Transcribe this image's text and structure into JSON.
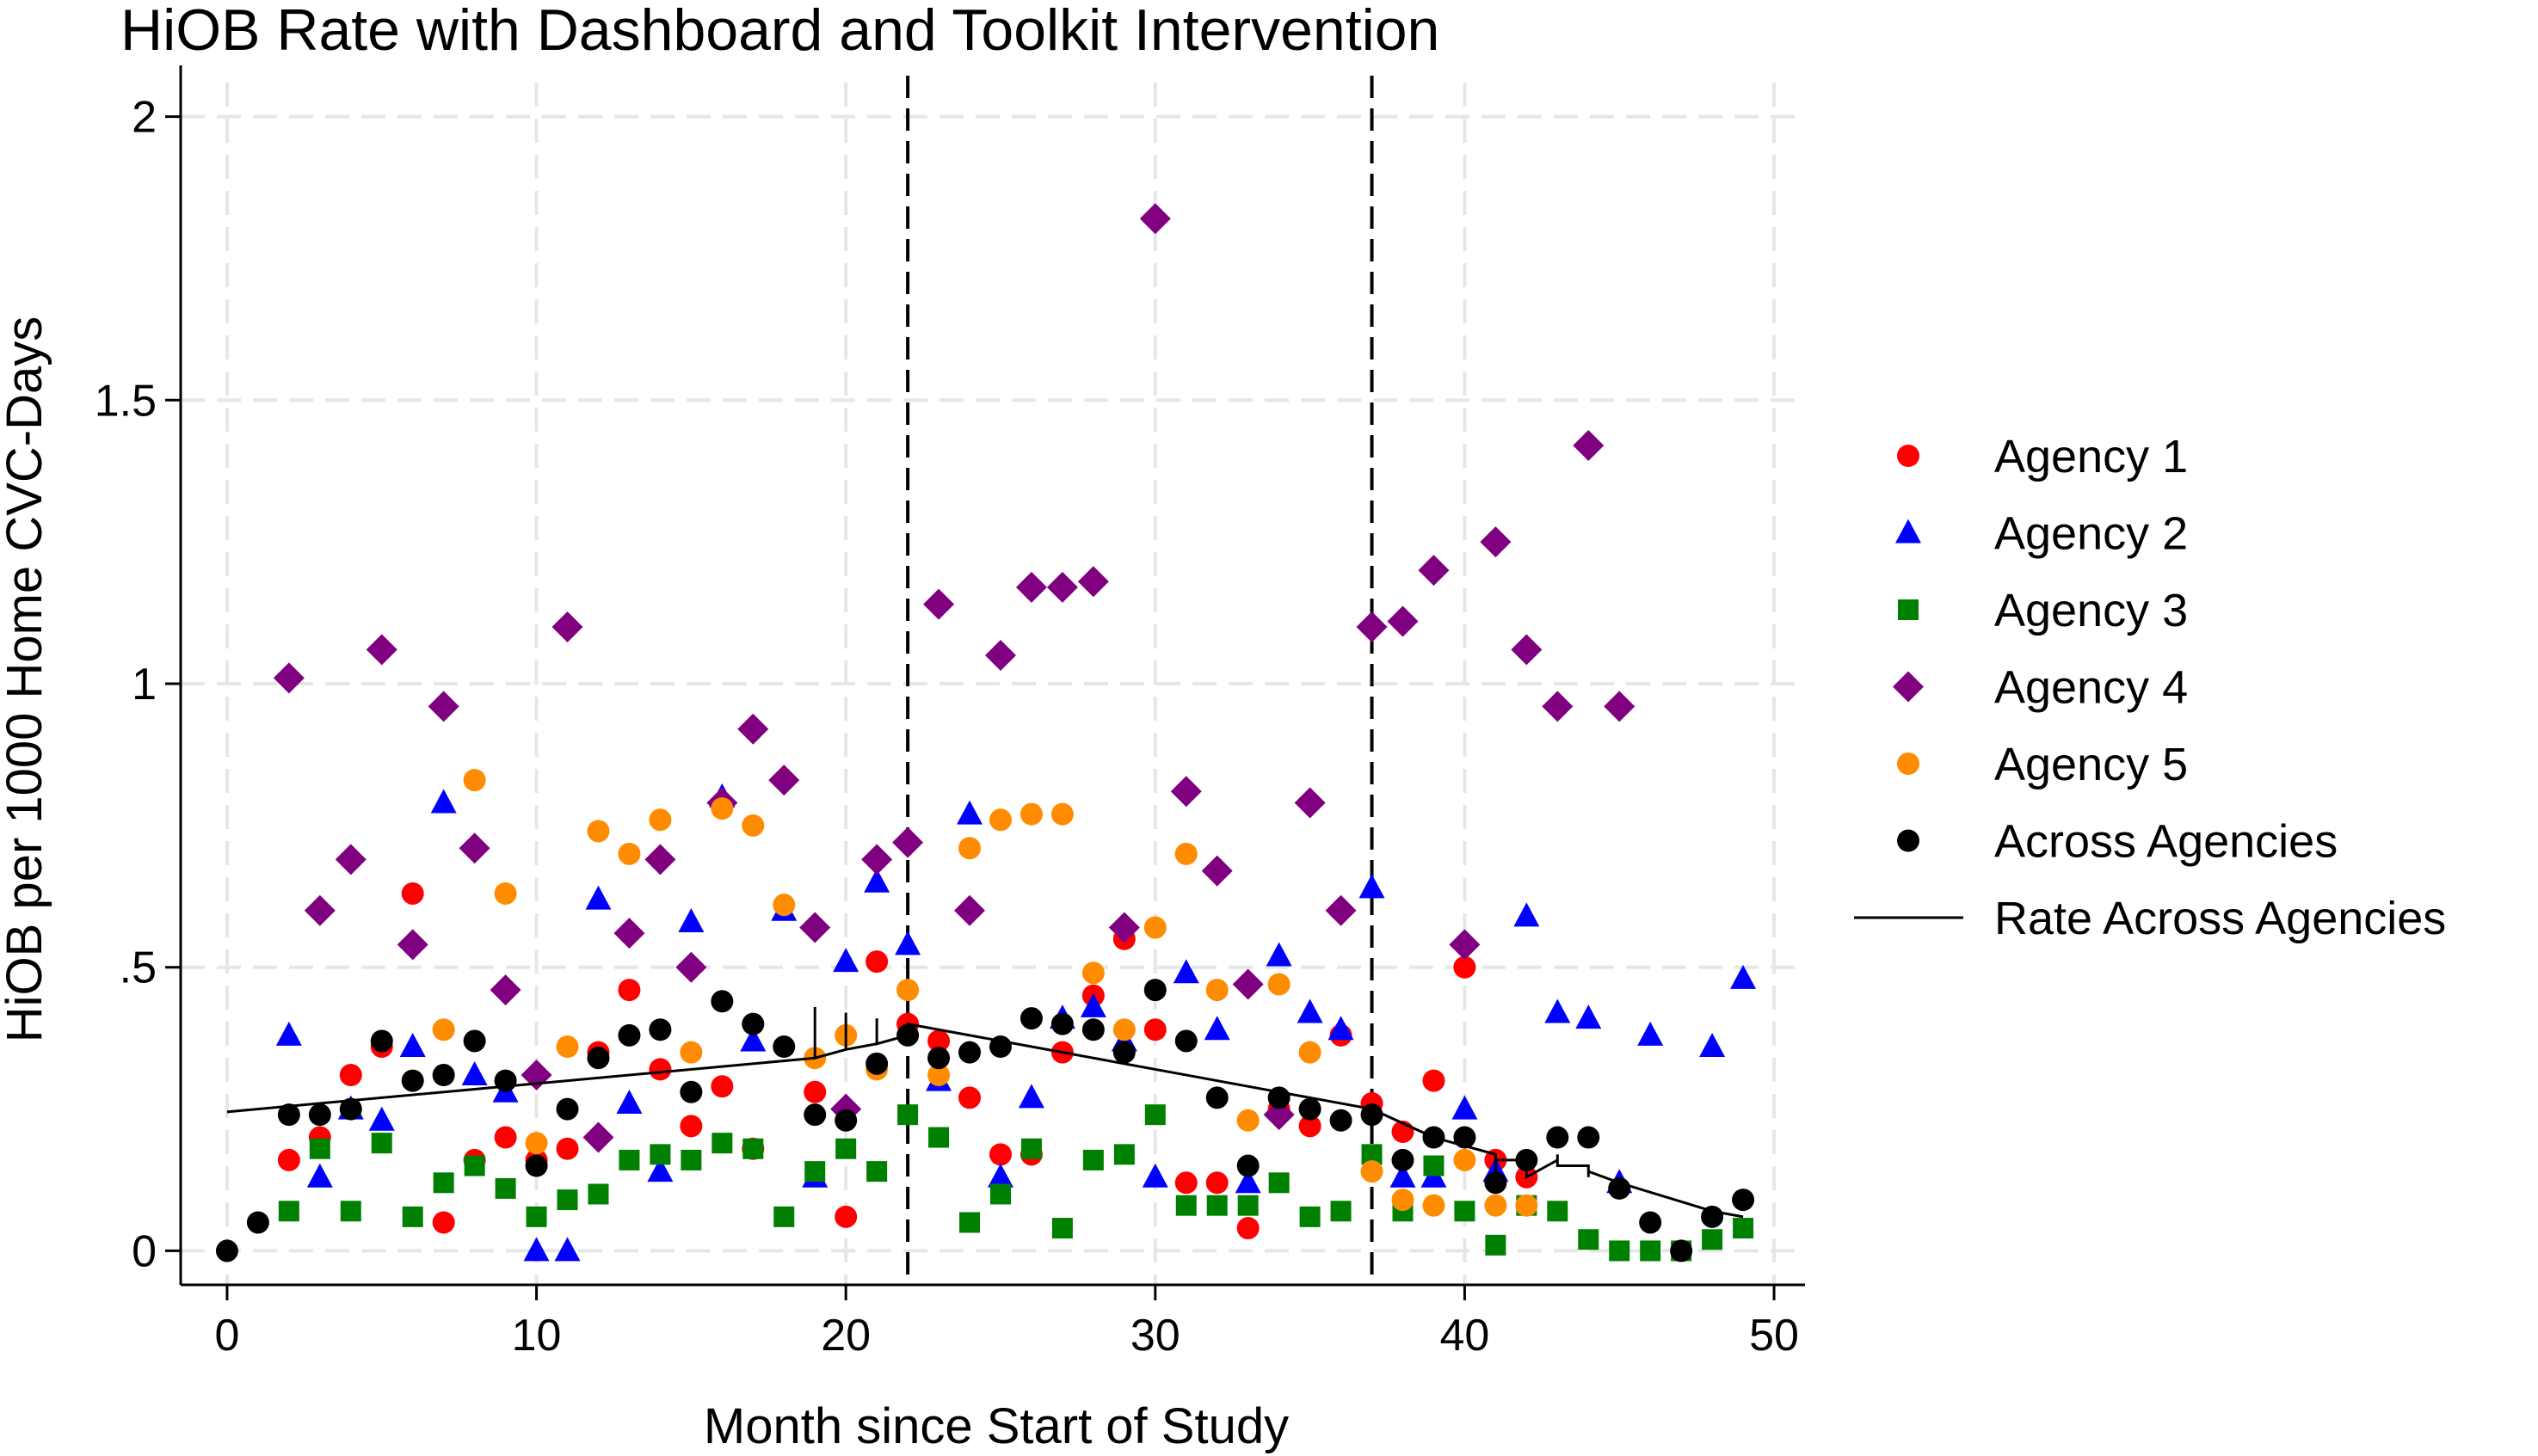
{
  "chart_data": {
    "type": "scatter",
    "title": "HiOB Rate with Dashboard and Toolkit Intervention",
    "xlabel": "Month since Start of Study",
    "ylabel": "HiOB per 1000 Home CVC-Days",
    "xlim": [
      -1.5,
      51
    ],
    "ylim": [
      -0.06,
      2.06
    ],
    "xticks": [
      0,
      10,
      20,
      30,
      40,
      50
    ],
    "xtick_labels": [
      "0",
      "10",
      "20",
      "30",
      "40",
      "50"
    ],
    "yticks": [
      0,
      0.5,
      1,
      1.5,
      2
    ],
    "ytick_labels": [
      "0",
      ".5",
      "1",
      "1.5",
      "2"
    ],
    "grid": true,
    "legend_position": "right",
    "vlines": [
      22,
      37
    ],
    "series": [
      {
        "name": "Agency 1",
        "marker": "circle",
        "color": "#ff0000",
        "points": [
          [
            2,
            0.16
          ],
          [
            3,
            0.2
          ],
          [
            4,
            0.31
          ],
          [
            5,
            0.36
          ],
          [
            6,
            0.63
          ],
          [
            7,
            0.05
          ],
          [
            8,
            0.16
          ],
          [
            9,
            0.2
          ],
          [
            10,
            0.16
          ],
          [
            11,
            0.18
          ],
          [
            12,
            0.35
          ],
          [
            13,
            0.46
          ],
          [
            14,
            0.32
          ],
          [
            15,
            0.22
          ],
          [
            16,
            0.29
          ],
          [
            17,
            0.18
          ],
          [
            19,
            0.28
          ],
          [
            20,
            0.06
          ],
          [
            21,
            0.51
          ],
          [
            22,
            0.4
          ],
          [
            23,
            0.37
          ],
          [
            24,
            0.27
          ],
          [
            25,
            0.17
          ],
          [
            26,
            0.17
          ],
          [
            27,
            0.35
          ],
          [
            28,
            0.45
          ],
          [
            29,
            0.55
          ],
          [
            30,
            0.39
          ],
          [
            31,
            0.12
          ],
          [
            32,
            0.12
          ],
          [
            33,
            0.04
          ],
          [
            34,
            0.25
          ],
          [
            35,
            0.22
          ],
          [
            36,
            0.38
          ],
          [
            37,
            0.26
          ],
          [
            38,
            0.21
          ],
          [
            39,
            0.3
          ],
          [
            40,
            0.5
          ],
          [
            41,
            0.16
          ],
          [
            42,
            0.13
          ]
        ]
      },
      {
        "name": "Agency 2",
        "marker": "triangle",
        "color": "#0000ff",
        "points": [
          [
            2,
            0.38
          ],
          [
            3,
            0.13
          ],
          [
            4,
            0.25
          ],
          [
            5,
            0.23
          ],
          [
            6,
            0.36
          ],
          [
            7,
            0.79
          ],
          [
            8,
            0.31
          ],
          [
            9,
            0.28
          ],
          [
            10,
            0.0
          ],
          [
            11,
            0.0
          ],
          [
            12,
            0.62
          ],
          [
            13,
            0.26
          ],
          [
            14,
            0.14
          ],
          [
            15,
            0.58
          ],
          [
            16,
            0.8
          ],
          [
            17,
            0.37
          ],
          [
            18,
            0.6
          ],
          [
            19,
            0.13
          ],
          [
            20,
            0.51
          ],
          [
            21,
            0.65
          ],
          [
            22,
            0.54
          ],
          [
            23,
            0.3
          ],
          [
            24,
            0.77
          ],
          [
            25,
            0.13
          ],
          [
            26,
            0.27
          ],
          [
            27,
            0.41
          ],
          [
            28,
            0.43
          ],
          [
            29,
            0.37
          ],
          [
            30,
            0.13
          ],
          [
            31,
            0.49
          ],
          [
            32,
            0.39
          ],
          [
            33,
            0.12
          ],
          [
            34,
            0.52
          ],
          [
            35,
            0.42
          ],
          [
            36,
            0.39
          ],
          [
            37,
            0.64
          ],
          [
            38,
            0.13
          ],
          [
            39,
            0.13
          ],
          [
            40,
            0.25
          ],
          [
            41,
            0.14
          ],
          [
            42,
            0.59
          ],
          [
            43,
            0.42
          ],
          [
            44,
            0.41
          ],
          [
            45,
            0.12
          ],
          [
            46,
            0.38
          ],
          [
            48,
            0.36
          ],
          [
            49,
            0.48
          ]
        ]
      },
      {
        "name": "Agency 3",
        "marker": "square",
        "color": "#008000",
        "points": [
          [
            2,
            0.07
          ],
          [
            3,
            0.18
          ],
          [
            4,
            0.07
          ],
          [
            5,
            0.19
          ],
          [
            6,
            0.06
          ],
          [
            7,
            0.12
          ],
          [
            8,
            0.15
          ],
          [
            9,
            0.11
          ],
          [
            10,
            0.06
          ],
          [
            11,
            0.09
          ],
          [
            12,
            0.1
          ],
          [
            13,
            0.16
          ],
          [
            14,
            0.17
          ],
          [
            15,
            0.16
          ],
          [
            16,
            0.19
          ],
          [
            17,
            0.18
          ],
          [
            18,
            0.06
          ],
          [
            19,
            0.14
          ],
          [
            20,
            0.18
          ],
          [
            21,
            0.14
          ],
          [
            22,
            0.24
          ],
          [
            23,
            0.2
          ],
          [
            24,
            0.05
          ],
          [
            25,
            0.1
          ],
          [
            26,
            0.18
          ],
          [
            27,
            0.04
          ],
          [
            28,
            0.16
          ],
          [
            29,
            0.17
          ],
          [
            30,
            0.24
          ],
          [
            31,
            0.08
          ],
          [
            32,
            0.08
          ],
          [
            33,
            0.08
          ],
          [
            34,
            0.12
          ],
          [
            35,
            0.06
          ],
          [
            36,
            0.07
          ],
          [
            37,
            0.17
          ],
          [
            38,
            0.07
          ],
          [
            39,
            0.15
          ],
          [
            40,
            0.07
          ],
          [
            41,
            0.01
          ],
          [
            42,
            0.08
          ],
          [
            43,
            0.07
          ],
          [
            44,
            0.02
          ],
          [
            45,
            0.0
          ],
          [
            46,
            0.0
          ],
          [
            47,
            0.0
          ],
          [
            48,
            0.02
          ],
          [
            49,
            0.04
          ]
        ]
      },
      {
        "name": "Agency 4",
        "marker": "diamond",
        "color": "#800080",
        "points": [
          [
            2,
            1.01
          ],
          [
            3,
            0.6
          ],
          [
            4,
            0.69
          ],
          [
            5,
            1.06
          ],
          [
            6,
            0.54
          ],
          [
            7,
            0.96
          ],
          [
            8,
            0.71
          ],
          [
            9,
            0.46
          ],
          [
            10,
            0.31
          ],
          [
            11,
            1.1
          ],
          [
            12,
            0.2
          ],
          [
            13,
            0.56
          ],
          [
            14,
            0.69
          ],
          [
            15,
            0.5
          ],
          [
            16,
            0.79
          ],
          [
            17,
            0.92
          ],
          [
            18,
            0.83
          ],
          [
            19,
            0.57
          ],
          [
            20,
            0.25
          ],
          [
            21,
            0.69
          ],
          [
            22,
            0.72
          ],
          [
            23,
            1.14
          ],
          [
            24,
            0.6
          ],
          [
            25,
            1.05
          ],
          [
            26,
            1.17
          ],
          [
            27,
            1.17
          ],
          [
            28,
            1.18
          ],
          [
            29,
            0.57
          ],
          [
            30,
            1.82
          ],
          [
            31,
            0.81
          ],
          [
            32,
            0.67
          ],
          [
            33,
            0.47
          ],
          [
            34,
            0.24
          ],
          [
            35,
            0.79
          ],
          [
            36,
            0.6
          ],
          [
            37,
            1.1
          ],
          [
            38,
            1.11
          ],
          [
            39,
            1.2
          ],
          [
            40,
            0.54
          ],
          [
            41,
            1.25
          ],
          [
            42,
            1.06
          ],
          [
            43,
            0.96
          ],
          [
            44,
            1.42
          ],
          [
            45,
            0.96
          ]
        ]
      },
      {
        "name": "Agency 5",
        "marker": "circle",
        "color": "#ff8c00",
        "points": [
          [
            7,
            0.39
          ],
          [
            8,
            0.83
          ],
          [
            9,
            0.63
          ],
          [
            10,
            0.19
          ],
          [
            11,
            0.36
          ],
          [
            12,
            0.74
          ],
          [
            13,
            0.7
          ],
          [
            14,
            0.76
          ],
          [
            15,
            0.35
          ],
          [
            16,
            0.78
          ],
          [
            17,
            0.75
          ],
          [
            18,
            0.61
          ],
          [
            19,
            0.34
          ],
          [
            20,
            0.38
          ],
          [
            21,
            0.32
          ],
          [
            22,
            0.46
          ],
          [
            23,
            0.31
          ],
          [
            24,
            0.71
          ],
          [
            25,
            0.76
          ],
          [
            26,
            0.77
          ],
          [
            27,
            0.77
          ],
          [
            28,
            0.49
          ],
          [
            29,
            0.39
          ],
          [
            30,
            0.57
          ],
          [
            31,
            0.7
          ],
          [
            32,
            0.46
          ],
          [
            33,
            0.23
          ],
          [
            34,
            0.47
          ],
          [
            35,
            0.35
          ],
          [
            37,
            0.14
          ],
          [
            38,
            0.09
          ],
          [
            39,
            0.08
          ],
          [
            40,
            0.16
          ],
          [
            41,
            0.08
          ],
          [
            42,
            0.08
          ]
        ]
      },
      {
        "name": "Across Agencies",
        "marker": "circle",
        "color": "#000000",
        "points": [
          [
            0,
            0.0
          ],
          [
            1,
            0.05
          ],
          [
            2,
            0.24
          ],
          [
            3,
            0.24
          ],
          [
            4,
            0.25
          ],
          [
            5,
            0.37
          ],
          [
            6,
            0.3
          ],
          [
            7,
            0.31
          ],
          [
            8,
            0.37
          ],
          [
            9,
            0.3
          ],
          [
            10,
            0.15
          ],
          [
            11,
            0.25
          ],
          [
            12,
            0.34
          ],
          [
            13,
            0.38
          ],
          [
            14,
            0.39
          ],
          [
            15,
            0.28
          ],
          [
            16,
            0.44
          ],
          [
            17,
            0.4
          ],
          [
            18,
            0.36
          ],
          [
            19,
            0.24
          ],
          [
            20,
            0.23
          ],
          [
            21,
            0.33
          ],
          [
            22,
            0.38
          ],
          [
            23,
            0.34
          ],
          [
            24,
            0.35
          ],
          [
            25,
            0.36
          ],
          [
            26,
            0.41
          ],
          [
            27,
            0.4
          ],
          [
            28,
            0.39
          ],
          [
            29,
            0.35
          ],
          [
            30,
            0.46
          ],
          [
            31,
            0.37
          ],
          [
            32,
            0.27
          ],
          [
            33,
            0.15
          ],
          [
            34,
            0.27
          ],
          [
            35,
            0.25
          ],
          [
            36,
            0.23
          ],
          [
            37,
            0.24
          ],
          [
            38,
            0.16
          ],
          [
            39,
            0.2
          ],
          [
            40,
            0.2
          ],
          [
            41,
            0.12
          ],
          [
            42,
            0.16
          ],
          [
            43,
            0.2
          ],
          [
            44,
            0.2
          ],
          [
            45,
            0.11
          ],
          [
            46,
            0.05
          ],
          [
            47,
            0.0
          ],
          [
            48,
            0.06
          ],
          [
            49,
            0.09
          ]
        ]
      },
      {
        "name": "Rate Across Agencies",
        "marker": "line",
        "color": "#000000",
        "points": [
          [
            0,
            0.245
          ],
          [
            10,
            0.295
          ],
          [
            19,
            0.34
          ],
          [
            19,
            0.43
          ],
          [
            19,
            0.34
          ],
          [
            20,
            0.355
          ],
          [
            20,
            0.42
          ],
          [
            20,
            0.355
          ],
          [
            21,
            0.365
          ],
          [
            21,
            0.41
          ],
          [
            21,
            0.365
          ],
          [
            22,
            0.38
          ],
          [
            22,
            0.4
          ],
          [
            26,
            0.36
          ],
          [
            30,
            0.32
          ],
          [
            34,
            0.28
          ],
          [
            37,
            0.25
          ],
          [
            39,
            0.2
          ],
          [
            41,
            0.17
          ],
          [
            41,
            0.14
          ],
          [
            41,
            0.16
          ],
          [
            42,
            0.16
          ],
          [
            42,
            0.13
          ],
          [
            43,
            0.16
          ],
          [
            43,
            0.17
          ],
          [
            43,
            0.15
          ],
          [
            44,
            0.15
          ],
          [
            44,
            0.13
          ],
          [
            44,
            0.14
          ],
          [
            45,
            0.12
          ],
          [
            48,
            0.07
          ],
          [
            49,
            0.06
          ]
        ]
      }
    ]
  }
}
